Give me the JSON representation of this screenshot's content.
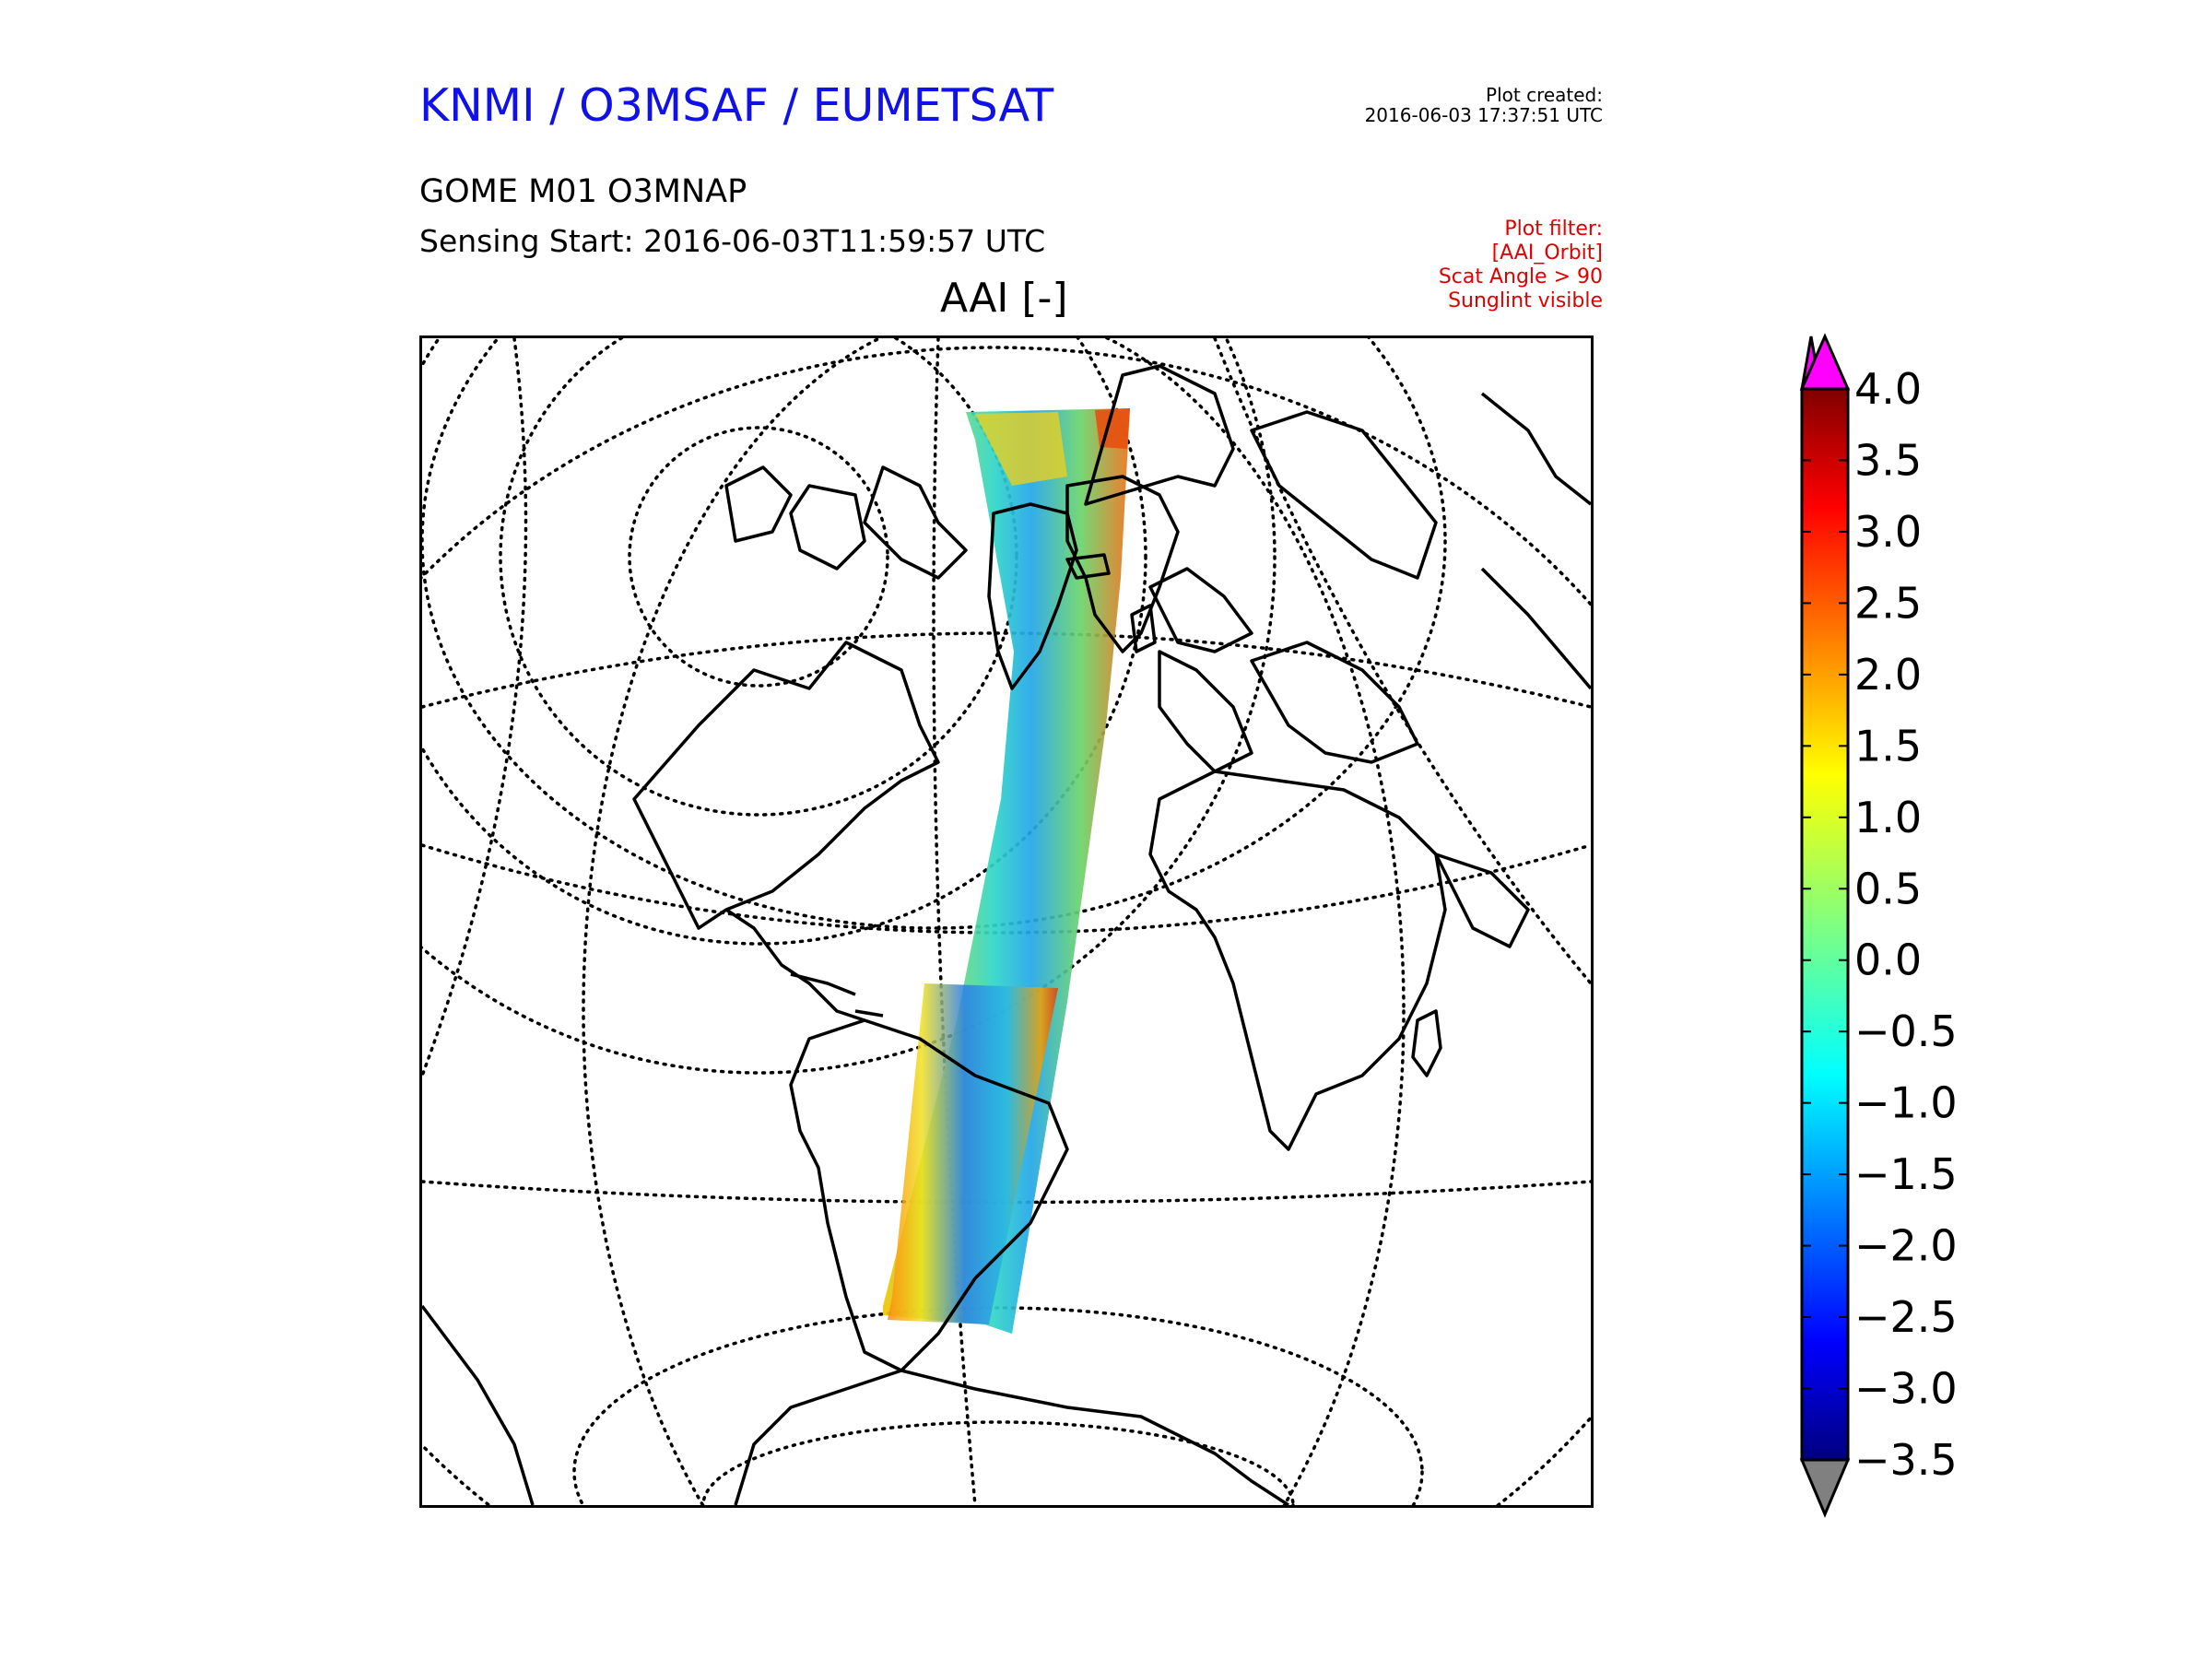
{
  "header": {
    "organization": "KNMI / O3MSAF / EUMETSAT",
    "plot_created_label": "Plot created:",
    "plot_created_value": "2016-06-03 17:37:51 UTC",
    "product": "GOME M01 O3MNAP",
    "sensing_start": "Sensing Start: 2016-06-03T11:59:57 UTC",
    "plot_filter": [
      "Plot filter:",
      "[AAI_Orbit]",
      "Scat Angle > 90",
      "Sunglint visible"
    ]
  },
  "map": {
    "title": "AAI [-]",
    "projection": "orthographic",
    "graticule": "dotted",
    "content": "satellite swath of AAI over Atlantic, Arctic to South America"
  },
  "colorbar": {
    "ticks": [
      "4.0",
      "3.5",
      "3.0",
      "2.5",
      "2.0",
      "1.5",
      "1.0",
      "0.5",
      "0.0",
      "−0.5",
      "−1.0",
      "−1.5",
      "−2.0",
      "−2.5",
      "−3.0",
      "−3.5"
    ],
    "min": -3.5,
    "max": 4.0,
    "over_color": "#ff00ff",
    "under_color": "#808080",
    "colormap": "jet"
  }
}
